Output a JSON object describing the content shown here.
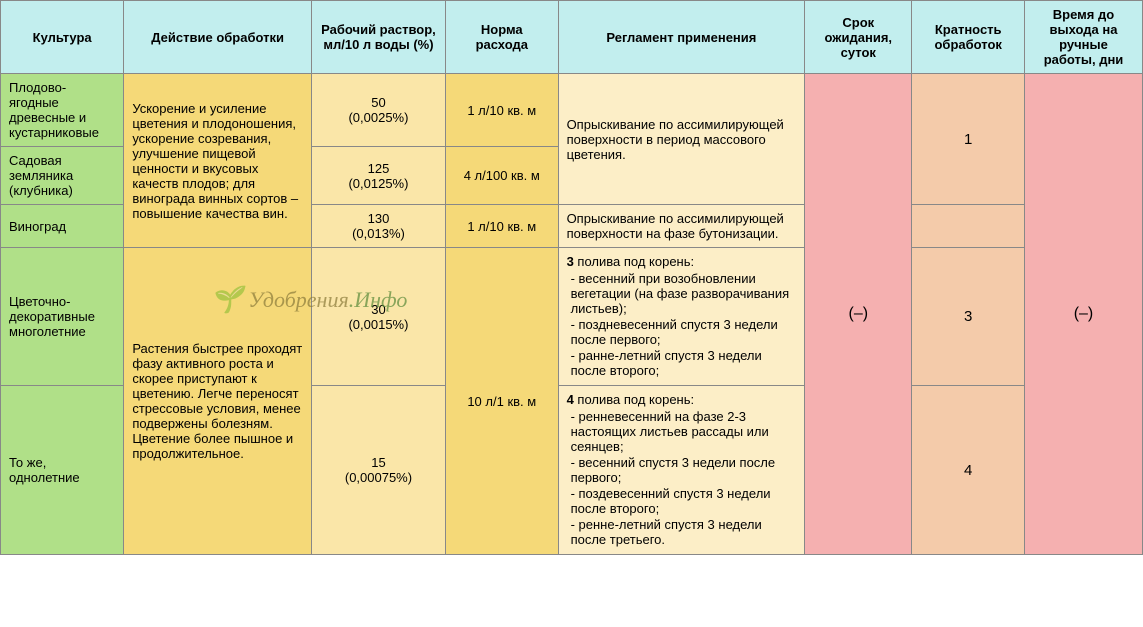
{
  "colors": {
    "header_bg": "#c2eeee",
    "culture_bg": "#b0e088",
    "action_bg": "#f5d978",
    "solution_bg": "#fae6a8",
    "rate_bg": "#f5d978",
    "regime_bg": "#fceec7",
    "wait_bg": "#f5b0b0",
    "freq_bg": "#f4cbaa",
    "days_bg": "#f5b0b0",
    "border": "#888888"
  },
  "headers": {
    "culture": "Культура",
    "action": "Действие обработки",
    "solution": "Рабочий раствор, мл/10 л воды (%)",
    "rate": "Норма расхода",
    "regime": "Регламент применения",
    "wait": "Срок ожидания, суток",
    "freq": "Кратность обработок",
    "days": "Время до выхода на ручные работы, дни"
  },
  "cultures": {
    "r1": "Плодово-ягодные древесные и кустарниковые",
    "r2": "Садовая земляника (клубника)",
    "r3": "Виноград",
    "r4": "Цветочно-декоративные многолетние",
    "r5": "То же, однолетние"
  },
  "actions": {
    "a1": "Ускорение и усиление цветения и плодоношения, ускорение созревания, улучшение пищевой ценности и вкусовых качеств плодов; для винограда винных сортов – повышение качества вин.",
    "a2": "Растения быстрее проходят фазу активного роста и скорее приступают к цветению. Легче переносят стрессовые условия, менее подвержены болезням. Цветение более пышное и продолжительное."
  },
  "solutions": {
    "s1_main": "50",
    "s1_pct": "(0,0025%)",
    "s2_main": "125",
    "s2_pct": "(0,0125%)",
    "s3_main": "130",
    "s3_pct": "(0,013%)",
    "s4_main": "30",
    "s4_pct": "(0,0015%)",
    "s5_main": "15",
    "s5_pct": "(0,00075%)"
  },
  "rates": {
    "r1": "1 л/10 кв. м",
    "r2": "4 л/100 кв. м",
    "r3": "1 л/10 кв. м",
    "r45": "10 л/1 кв. м"
  },
  "regimes": {
    "g1": "Опрыскивание по ассимилирующей поверхности в период массового цветения.",
    "g2": "Опрыскивание по ассимилирующей поверхности на фазе бутонизации.",
    "g3_head": "3",
    "g3_tail": " полива под корень:",
    "g3_items": [
      "весенний при возобновлении вегетации (на фазе разворачивания листьев);",
      "поздневесенний спустя 3 недели после первого;",
      "ранне-летний спустя 3 недели после второго;"
    ],
    "g4_head": "4",
    "g4_tail": " полива под корень:",
    "g4_items": [
      "ренневесенний на фазе 2-3 настоящих листьев рассады или сеянцев;",
      "весенний спустя 3 недели после первого;",
      "поздевесенний спустя 3 недели после второго;",
      "ренне-летний спустя 3 недели после третьего."
    ]
  },
  "wait": "(–)",
  "freq": {
    "f12": "1",
    "f4": "3",
    "f5": "4"
  },
  "days": "(–)",
  "watermark": {
    "part1": "Удобрения",
    "part2": ".Инфо"
  }
}
